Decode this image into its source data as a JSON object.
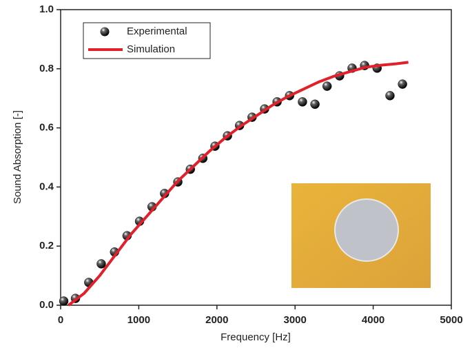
{
  "chart_data": {
    "type": "scatter",
    "x_label": "Frequency [Hz]",
    "y_label": "Sound Absorption [-]",
    "xlim": [
      0,
      5000
    ],
    "xticks": [
      0,
      1000,
      2000,
      3000,
      4000,
      5000
    ],
    "ylim": [
      0,
      1
    ],
    "yticks": [
      {
        "value": 0,
        "label": "0.0"
      },
      0.2,
      0.4,
      0.6,
      0.8,
      {
        "value": 1,
        "label": "1.0"
      }
    ],
    "legend": "upper left",
    "series": [
      {
        "name": "Experimental",
        "type": "scatter",
        "color": "#111111",
        "x": [
          40,
          190,
          360,
          520,
          690,
          850,
          1010,
          1170,
          1330,
          1500,
          1660,
          1820,
          1975,
          2135,
          2290,
          2450,
          2610,
          2770,
          2930,
          3095,
          3255,
          3410,
          3570,
          3730,
          3890,
          4050,
          4215,
          4375
        ],
        "values": [
          0.014,
          0.023,
          0.077,
          0.14,
          0.18,
          0.235,
          0.284,
          0.333,
          0.378,
          0.417,
          0.46,
          0.497,
          0.538,
          0.573,
          0.608,
          0.636,
          0.664,
          0.688,
          0.709,
          0.688,
          0.68,
          0.741,
          0.776,
          0.802,
          0.811,
          0.802,
          0.709,
          0.748
        ]
      },
      {
        "name": "Simulation",
        "type": "line",
        "color": "#e0202a",
        "x": [
          100,
          300,
          500,
          700,
          900,
          1100,
          1300,
          1500,
          1700,
          1900,
          2100,
          2300,
          2500,
          2700,
          2900,
          3100,
          3300,
          3500,
          3700,
          3900,
          4100,
          4300,
          4450
        ],
        "values": [
          0,
          0.04,
          0.1,
          0.17,
          0.24,
          0.3,
          0.36,
          0.42,
          0.47,
          0.52,
          0.565,
          0.605,
          0.64,
          0.675,
          0.705,
          0.73,
          0.755,
          0.775,
          0.79,
          0.805,
          0.812,
          0.817,
          0.822
        ]
      }
    ]
  }
}
